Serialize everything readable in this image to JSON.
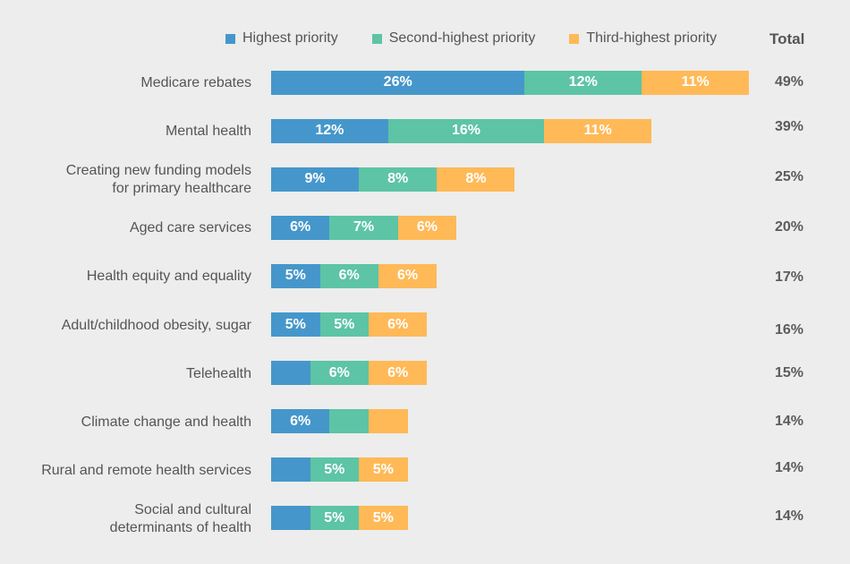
{
  "chart_data": {
    "type": "bar",
    "orientation": "horizontal",
    "stacked": true,
    "title": "",
    "xlabel": "",
    "ylabel": "",
    "xlim": [
      0,
      49
    ],
    "grid": false,
    "legend_position": "top",
    "total_header": "Total",
    "categories": [
      "Medicare rebates",
      "Mental health",
      "Creating new funding models\nfor primary healthcare",
      "Aged care services",
      "Health equity and equality",
      "Adult/childhood obesity, sugar",
      "Telehealth",
      "Climate change and health",
      "Rural and remote health services",
      "Social and cultural\ndeterminants of health"
    ],
    "series": [
      {
        "name": "Highest priority",
        "color": "#4597cb",
        "values": [
          26,
          12,
          9,
          6,
          5,
          5,
          4,
          6,
          4,
          4
        ],
        "labels": [
          "26%",
          "12%",
          "9%",
          "6%",
          "5%",
          "5%",
          "",
          "6%",
          "",
          ""
        ]
      },
      {
        "name": "Second-highest priority",
        "color": "#5dc4a5",
        "values": [
          12,
          16,
          8,
          7,
          6,
          5,
          6,
          4,
          5,
          5
        ],
        "labels": [
          "12%",
          "16%",
          "8%",
          "7%",
          "6%",
          "5%",
          "6%",
          "",
          "5%",
          "5%"
        ]
      },
      {
        "name": "Third-highest priority",
        "color": "#ffb957",
        "values": [
          11,
          11,
          8,
          6,
          6,
          6,
          6,
          4,
          5,
          5
        ],
        "labels": [
          "11%",
          "11%",
          "8%",
          "6%",
          "6%",
          "6%",
          "6%",
          "",
          "5%",
          "5%"
        ]
      }
    ],
    "totals": [
      "49%",
      "39%",
      "25%",
      "20%",
      "17%",
      "16%",
      "15%",
      "14%",
      "14%",
      "14%"
    ]
  }
}
